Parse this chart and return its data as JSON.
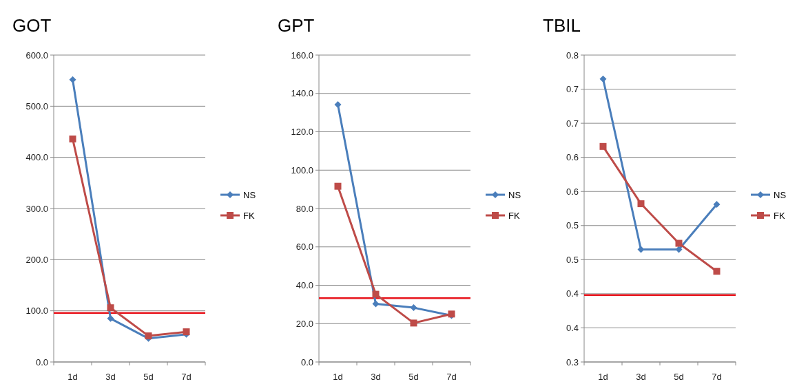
{
  "chart_data": [
    {
      "type": "line",
      "title": "GOT",
      "categories": [
        "1d",
        "3d",
        "5d",
        "7d"
      ],
      "ylim": [
        0,
        600
      ],
      "yticks": [
        {
          "value": 0,
          "label": "0.0"
        },
        {
          "value": 100,
          "label": "100.0"
        },
        {
          "value": 200,
          "label": "200.0"
        },
        {
          "value": 300,
          "label": "300.0"
        },
        {
          "value": 400,
          "label": "400.0"
        },
        {
          "value": 500,
          "label": "500.0"
        },
        {
          "value": 600,
          "label": "600.0"
        }
      ],
      "grid": "y",
      "legend": "right",
      "series": [
        {
          "name": "NS",
          "color": "#4a7ebb",
          "marker": "diamond",
          "values": [
            552,
            85,
            46,
            54
          ]
        },
        {
          "name": "FK",
          "color": "#be4b48",
          "marker": "square",
          "values": [
            436,
            106,
            51,
            59
          ]
        }
      ],
      "ref_lines": [
        {
          "axis": "y",
          "value": 96,
          "color": "#e8141c"
        }
      ]
    },
    {
      "type": "line",
      "title": "GPT",
      "categories": [
        "1d",
        "3d",
        "5d",
        "7d"
      ],
      "ylim": [
        0,
        160
      ],
      "yticks": [
        {
          "value": 0,
          "label": "0.0"
        },
        {
          "value": 20,
          "label": "20.0"
        },
        {
          "value": 40,
          "label": "40.0"
        },
        {
          "value": 60,
          "label": "60.0"
        },
        {
          "value": 80,
          "label": "80.0"
        },
        {
          "value": 100,
          "label": "100.0"
        },
        {
          "value": 120,
          "label": "120.0"
        },
        {
          "value": 140,
          "label": "140.0"
        },
        {
          "value": 160,
          "label": "160.0"
        }
      ],
      "grid": "y",
      "legend": "right",
      "series": [
        {
          "name": "NS",
          "color": "#4a7ebb",
          "marker": "diamond",
          "values": [
            134.2,
            30.3,
            28.3,
            24.2
          ]
        },
        {
          "name": "FK",
          "color": "#be4b48",
          "marker": "square",
          "values": [
            91.6,
            35.3,
            20.3,
            25.0
          ]
        }
      ],
      "ref_lines": [
        {
          "axis": "y",
          "value": 33.3,
          "color": "#e8141c"
        }
      ]
    },
    {
      "type": "line",
      "title": "TBIL",
      "categories": [
        "1d",
        "3d",
        "5d",
        "7d"
      ],
      "ylim": [
        0.3,
        0.75
      ],
      "yticks": [
        {
          "value": 0.3,
          "label": "0.3"
        },
        {
          "value": 0.35,
          "label": "0.4"
        },
        {
          "value": 0.4,
          "label": "0.4"
        },
        {
          "value": 0.45,
          "label": "0.5"
        },
        {
          "value": 0.5,
          "label": "0.5"
        },
        {
          "value": 0.55,
          "label": "0.6"
        },
        {
          "value": 0.6,
          "label": "0.6"
        },
        {
          "value": 0.65,
          "label": "0.7"
        },
        {
          "value": 0.7,
          "label": "0.7"
        },
        {
          "value": 0.75,
          "label": "0.8"
        }
      ],
      "grid": "y",
      "legend": "right",
      "series": [
        {
          "name": "NS",
          "color": "#4a7ebb",
          "marker": "diamond",
          "values": [
            0.715,
            0.465,
            0.465,
            0.531
          ]
        },
        {
          "name": "FK",
          "color": "#be4b48",
          "marker": "square",
          "values": [
            0.616,
            0.532,
            0.474,
            0.433
          ]
        }
      ],
      "ref_lines": [
        {
          "axis": "y",
          "value": 0.398,
          "color": "#e8141c"
        }
      ]
    }
  ]
}
